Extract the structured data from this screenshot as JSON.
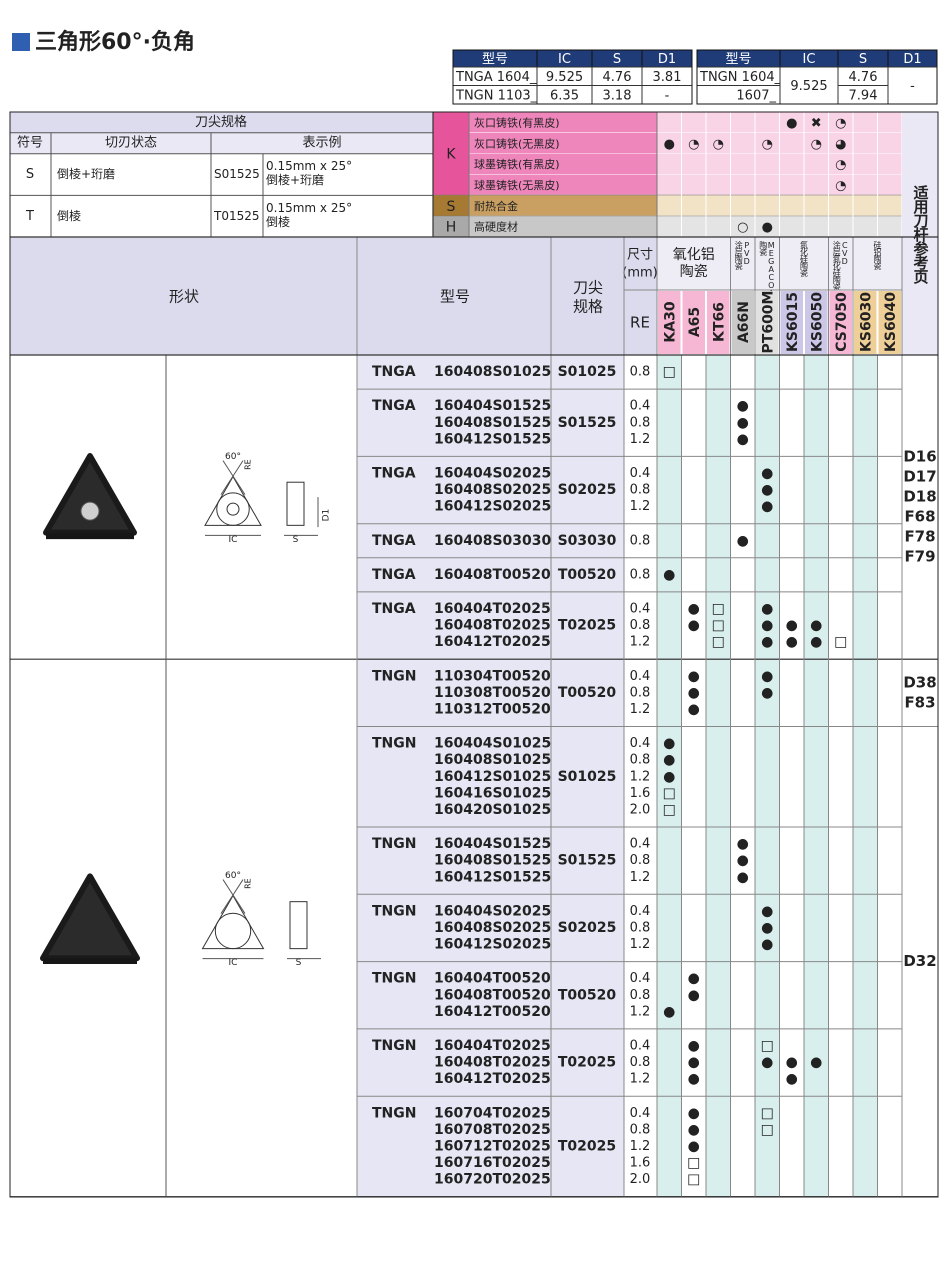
{
  "title": "三角形60°·负角",
  "dimension_tables": [
    {
      "headers": [
        "型号",
        "IC",
        "S",
        "D1"
      ],
      "rows": [
        [
          "TNGA 1604_",
          "9.525",
          "4.76",
          "3.81"
        ],
        [
          "TNGN 1103_",
          "6.35",
          "3.18",
          "-"
        ]
      ]
    },
    {
      "headers": [
        "型号",
        "IC",
        "S",
        "D1"
      ],
      "rows": [
        [
          "TNGN 1604_",
          "9.525",
          "4.76",
          "-"
        ],
        [
          "1607_",
          null,
          "7.94",
          null
        ]
      ]
    }
  ],
  "edge_spec": {
    "title": "刀尖规格",
    "headers": [
      "符号",
      "切刃状态",
      "表示例"
    ],
    "rows": [
      {
        "symbol": "S",
        "state": "倒棱+珩磨",
        "code": "S01525",
        "example": [
          "0.15mm x 25°",
          "倒棱+珩磨"
        ]
      },
      {
        "symbol": "T",
        "state": "倒棱",
        "code": "T01525",
        "example": [
          "0.15mm x 25°",
          "倒棱"
        ]
      }
    ]
  },
  "materials": [
    {
      "letter": "K",
      "items": [
        {
          "name": "灰口铸铁(有黑皮)",
          "marks": [
            null,
            null,
            null,
            null,
            null,
            "●",
            "✖",
            "◔",
            null,
            null
          ]
        },
        {
          "name": "灰口铸铁(无黑皮)",
          "marks": [
            "●",
            "◔",
            "◔",
            null,
            "◔",
            null,
            "◔",
            "◕",
            null,
            null
          ]
        },
        {
          "name": "球墨铸铁(有黑皮)",
          "marks": [
            null,
            null,
            null,
            null,
            null,
            null,
            null,
            "◔",
            null,
            null
          ]
        },
        {
          "name": "球墨铸铁(无黑皮)",
          "marks": [
            null,
            null,
            null,
            null,
            null,
            null,
            null,
            "◔",
            null,
            null
          ]
        }
      ]
    },
    {
      "letter": "S",
      "items": [
        {
          "name": "耐热合金",
          "marks": [
            null,
            null,
            null,
            null,
            null,
            null,
            null,
            null,
            null,
            null
          ]
        }
      ]
    },
    {
      "letter": "H",
      "items": [
        {
          "name": "高硬度材",
          "marks": [
            null,
            null,
            null,
            "○",
            "●",
            null,
            null,
            null,
            null,
            null
          ]
        }
      ]
    }
  ],
  "reference_header": "适用刀杆参考页",
  "header": {
    "shape": "形状",
    "model": "型号",
    "spec": [
      "刀尖",
      "规格"
    ],
    "size": [
      "尺寸",
      "(mm)"
    ],
    "re": "RE"
  },
  "grade_groups": [
    {
      "label": [
        "氧化铝",
        "陶瓷"
      ],
      "span": 3
    },
    {
      "label": [
        "涂层陶瓷",
        "PVD"
      ],
      "span": 1,
      "vertical": true
    },
    {
      "label": [
        "陶瓷",
        "MEGACOAT"
      ],
      "span": 1,
      "vertical": true
    },
    {
      "label": [
        "氮化硅陶瓷"
      ],
      "span": 2,
      "vertical": true
    },
    {
      "label": [
        "涂层氮化硅陶瓷",
        "CVD"
      ],
      "span": 1,
      "vertical": true
    },
    {
      "label": [
        "硅铝陶瓷"
      ],
      "span": 2,
      "vertical": true
    }
  ],
  "grades": [
    "KA30",
    "A65",
    "KT66",
    "A66N",
    "PT600M",
    "KS6015",
    "KS6050",
    "CS7050",
    "KS6030",
    "KS6040"
  ],
  "groups": [
    {
      "diagram": {
        "angle": "60°",
        "corner": "RE",
        "ic": "IC",
        "s": "S",
        "d1": "D1"
      },
      "subgroups": [
        {
          "refs": [
            "D16",
            "D17",
            "D18",
            "F68",
            "F78",
            "F79"
          ],
          "rows": [
            {
              "code": "TNGA",
              "items": [
                "160408S01025"
              ],
              "spec": "S01025",
              "re": [
                "0.8"
              ],
              "marks": [
                [
                  "□",
                  null,
                  null,
                  null,
                  null,
                  null,
                  null,
                  null,
                  null,
                  null
                ]
              ]
            },
            {
              "code": "TNGA",
              "items": [
                "160404S01525",
                "160408S01525",
                "160412S01525"
              ],
              "spec": "S01525",
              "re": [
                "0.4",
                "0.8",
                "1.2"
              ],
              "marks": [
                [
                  null,
                  null,
                  null,
                  "●",
                  null,
                  null,
                  null,
                  null,
                  null,
                  null
                ],
                [
                  null,
                  null,
                  null,
                  "●",
                  null,
                  null,
                  null,
                  null,
                  null,
                  null
                ],
                [
                  null,
                  null,
                  null,
                  "●",
                  null,
                  null,
                  null,
                  null,
                  null,
                  null
                ]
              ]
            },
            {
              "code": "TNGA",
              "items": [
                "160404S02025",
                "160408S02025",
                "160412S02025"
              ],
              "spec": "S02025",
              "re": [
                "0.4",
                "0.8",
                "1.2"
              ],
              "marks": [
                [
                  null,
                  null,
                  null,
                  null,
                  "●",
                  null,
                  null,
                  null,
                  null,
                  null
                ],
                [
                  null,
                  null,
                  null,
                  null,
                  "●",
                  null,
                  null,
                  null,
                  null,
                  null
                ],
                [
                  null,
                  null,
                  null,
                  null,
                  "●",
                  null,
                  null,
                  null,
                  null,
                  null
                ]
              ]
            },
            {
              "code": "TNGA",
              "items": [
                "160408S03030"
              ],
              "spec": "S03030",
              "re": [
                "0.8"
              ],
              "marks": [
                [
                  null,
                  null,
                  null,
                  "●",
                  null,
                  null,
                  null,
                  null,
                  null,
                  null
                ]
              ]
            },
            {
              "code": "TNGA",
              "items": [
                "160408T00520"
              ],
              "spec": "T00520",
              "re": [
                "0.8"
              ],
              "marks": [
                [
                  "●",
                  null,
                  null,
                  null,
                  null,
                  null,
                  null,
                  null,
                  null,
                  null
                ]
              ]
            },
            {
              "code": "TNGA",
              "items": [
                "160404T02025",
                "160408T02025",
                "160412T02025"
              ],
              "spec": "T02025",
              "re": [
                "0.4",
                "0.8",
                "1.2"
              ],
              "marks": [
                [
                  null,
                  "●",
                  "□",
                  null,
                  "●",
                  null,
                  null,
                  null,
                  null,
                  null
                ],
                [
                  null,
                  "●",
                  "□",
                  null,
                  "●",
                  "●",
                  "●",
                  null,
                  null,
                  null
                ],
                [
                  null,
                  null,
                  "□",
                  null,
                  "●",
                  "●",
                  "●",
                  "□",
                  null,
                  null
                ]
              ]
            }
          ]
        }
      ]
    },
    {
      "diagram": {
        "angle": "60°",
        "corner": "RE",
        "ic": "IC",
        "s": "S"
      },
      "subgroups": [
        {
          "refs": [
            "D38",
            "F83"
          ],
          "rows": [
            {
              "code": "TNGN",
              "items": [
                "110304T00520",
                "110308T00520",
                "110312T00520"
              ],
              "spec": "T00520",
              "re": [
                "0.4",
                "0.8",
                "1.2"
              ],
              "marks": [
                [
                  null,
                  "●",
                  null,
                  null,
                  "●",
                  null,
                  null,
                  null,
                  null,
                  null
                ],
                [
                  null,
                  "●",
                  null,
                  null,
                  "●",
                  null,
                  null,
                  null,
                  null,
                  null
                ],
                [
                  null,
                  "●",
                  null,
                  null,
                  null,
                  null,
                  null,
                  null,
                  null,
                  null
                ]
              ]
            }
          ]
        },
        {
          "refs": [
            "D32"
          ],
          "rows": [
            {
              "code": "TNGN",
              "items": [
                "160404S01025",
                "160408S01025",
                "160412S01025",
                "160416S01025",
                "160420S01025"
              ],
              "spec": "S01025",
              "re": [
                "0.4",
                "0.8",
                "1.2",
                "1.6",
                "2.0"
              ],
              "marks": [
                [
                  "●",
                  null,
                  null,
                  null,
                  null,
                  null,
                  null,
                  null,
                  null,
                  null
                ],
                [
                  "●",
                  null,
                  null,
                  null,
                  null,
                  null,
                  null,
                  null,
                  null,
                  null
                ],
                [
                  "●",
                  null,
                  null,
                  null,
                  null,
                  null,
                  null,
                  null,
                  null,
                  null
                ],
                [
                  "□",
                  null,
                  null,
                  null,
                  null,
                  null,
                  null,
                  null,
                  null,
                  null
                ],
                [
                  "□",
                  null,
                  null,
                  null,
                  null,
                  null,
                  null,
                  null,
                  null,
                  null
                ]
              ]
            },
            {
              "code": "TNGN",
              "items": [
                "160404S01525",
                "160408S01525",
                "160412S01525"
              ],
              "spec": "S01525",
              "re": [
                "0.4",
                "0.8",
                "1.2"
              ],
              "marks": [
                [
                  null,
                  null,
                  null,
                  "●",
                  null,
                  null,
                  null,
                  null,
                  null,
                  null
                ],
                [
                  null,
                  null,
                  null,
                  "●",
                  null,
                  null,
                  null,
                  null,
                  null,
                  null
                ],
                [
                  null,
                  null,
                  null,
                  "●",
                  null,
                  null,
                  null,
                  null,
                  null,
                  null
                ]
              ]
            },
            {
              "code": "TNGN",
              "items": [
                "160404S02025",
                "160408S02025",
                "160412S02025"
              ],
              "spec": "S02025",
              "re": [
                "0.4",
                "0.8",
                "1.2"
              ],
              "marks": [
                [
                  null,
                  null,
                  null,
                  null,
                  "●",
                  null,
                  null,
                  null,
                  null,
                  null
                ],
                [
                  null,
                  null,
                  null,
                  null,
                  "●",
                  null,
                  null,
                  null,
                  null,
                  null
                ],
                [
                  null,
                  null,
                  null,
                  null,
                  "●",
                  null,
                  null,
                  null,
                  null,
                  null
                ]
              ]
            },
            {
              "code": "TNGN",
              "items": [
                "160404T00520",
                "160408T00520",
                "160412T00520"
              ],
              "spec": "T00520",
              "re": [
                "0.4",
                "0.8",
                "1.2"
              ],
              "marks": [
                [
                  null,
                  "●",
                  null,
                  null,
                  null,
                  null,
                  null,
                  null,
                  null,
                  null
                ],
                [
                  null,
                  "●",
                  null,
                  null,
                  null,
                  null,
                  null,
                  null,
                  null,
                  null
                ],
                [
                  "●",
                  null,
                  null,
                  null,
                  null,
                  null,
                  null,
                  null,
                  null,
                  null
                ]
              ]
            },
            {
              "code": "TNGN",
              "items": [
                "160404T02025",
                "160408T02025",
                "160412T02025"
              ],
              "spec": "T02025",
              "re": [
                "0.4",
                "0.8",
                "1.2"
              ],
              "marks": [
                [
                  null,
                  "●",
                  null,
                  null,
                  "□",
                  null,
                  null,
                  null,
                  null,
                  null
                ],
                [
                  null,
                  "●",
                  null,
                  null,
                  "●",
                  "●",
                  "●",
                  null,
                  null,
                  null
                ],
                [
                  null,
                  "●",
                  null,
                  null,
                  null,
                  "●",
                  null,
                  null,
                  null,
                  null
                ]
              ]
            },
            {
              "code": "TNGN",
              "items": [
                "160704T02025",
                "160708T02025",
                "160712T02025",
                "160716T02025",
                "160720T02025"
              ],
              "spec": "T02025",
              "re": [
                "0.4",
                "0.8",
                "1.2",
                "1.6",
                "2.0"
              ],
              "marks": [
                [
                  null,
                  "●",
                  null,
                  null,
                  "□",
                  null,
                  null,
                  null,
                  null,
                  null
                ],
                [
                  null,
                  "●",
                  null,
                  null,
                  "□",
                  null,
                  null,
                  null,
                  null,
                  null
                ],
                [
                  null,
                  "●",
                  null,
                  null,
                  null,
                  null,
                  null,
                  null,
                  null,
                  null
                ],
                [
                  null,
                  "□",
                  null,
                  null,
                  null,
                  null,
                  null,
                  null,
                  null,
                  null
                ],
                [
                  null,
                  "□",
                  null,
                  null,
                  null,
                  null,
                  null,
                  null,
                  null,
                  null
                ]
              ]
            }
          ]
        }
      ]
    }
  ]
}
